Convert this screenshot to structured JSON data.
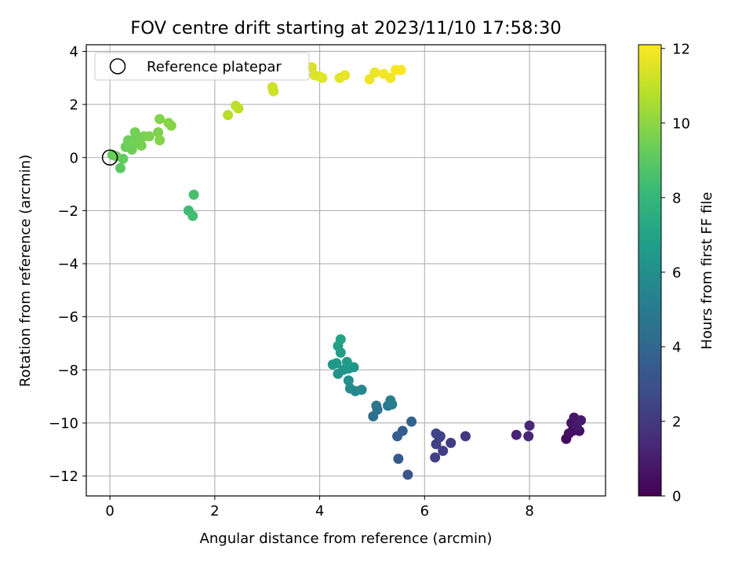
{
  "chart_data": {
    "type": "scatter",
    "title": "FOV centre drift starting at 2023/11/10 17:58:30",
    "xlabel": "Angular distance from reference (arcmin)",
    "ylabel": "Rotation from reference (arcmin)",
    "xlim": [
      -0.45,
      9.45
    ],
    "ylim": [
      -12.75,
      4.25
    ],
    "xticks": [
      0,
      2,
      4,
      6,
      8
    ],
    "yticks": [
      -12,
      -10,
      -8,
      -6,
      -4,
      -2,
      0,
      2,
      4
    ],
    "grid": true,
    "legend": {
      "position": "top-left",
      "entries": [
        "Reference platepar"
      ]
    },
    "reference_point": {
      "x": 0,
      "y": 0,
      "label": "Reference platepar"
    },
    "colorbar": {
      "label": "Hours from first FF file",
      "colormap": "viridis",
      "range": [
        0,
        12.1
      ],
      "ticks": [
        0,
        2,
        4,
        6,
        8,
        10,
        12
      ]
    },
    "series": [
      {
        "points": [
          {
            "x": 8.7,
            "y": -10.6,
            "c": 0.2
          },
          {
            "x": 8.82,
            "y": -10.3,
            "c": 0.4
          },
          {
            "x": 8.95,
            "y": -10.3,
            "c": 0.5
          },
          {
            "x": 8.8,
            "y": -10.0,
            "c": 0.6
          },
          {
            "x": 8.85,
            "y": -9.8,
            "c": 0.7
          },
          {
            "x": 8.9,
            "y": -10.1,
            "c": 0.8
          },
          {
            "x": 8.98,
            "y": -9.9,
            "c": 0.9
          },
          {
            "x": 8.75,
            "y": -10.4,
            "c": 0.5
          },
          {
            "x": 7.75,
            "y": -10.45,
            "c": 1.2
          },
          {
            "x": 7.98,
            "y": -10.5,
            "c": 1.3
          },
          {
            "x": 8.0,
            "y": -10.1,
            "c": 1.4
          },
          {
            "x": 6.78,
            "y": -10.5,
            "c": 1.9
          },
          {
            "x": 6.5,
            "y": -10.75,
            "c": 2.1
          },
          {
            "x": 6.35,
            "y": -11.05,
            "c": 2.2
          },
          {
            "x": 6.2,
            "y": -11.3,
            "c": 2.3
          },
          {
            "x": 6.22,
            "y": -10.8,
            "c": 2.3
          },
          {
            "x": 6.3,
            "y": -10.5,
            "c": 2.4
          },
          {
            "x": 6.22,
            "y": -10.4,
            "c": 2.5
          },
          {
            "x": 6.28,
            "y": -10.55,
            "c": 2.4
          },
          {
            "x": 5.68,
            "y": -11.95,
            "c": 3.2
          },
          {
            "x": 5.5,
            "y": -11.35,
            "c": 3.4
          },
          {
            "x": 5.48,
            "y": -10.5,
            "c": 3.6
          },
          {
            "x": 5.58,
            "y": -10.3,
            "c": 3.6
          },
          {
            "x": 5.75,
            "y": -9.95,
            "c": 3.8
          },
          {
            "x": 5.02,
            "y": -9.75,
            "c": 4.4
          },
          {
            "x": 5.1,
            "y": -9.5,
            "c": 4.6
          },
          {
            "x": 5.08,
            "y": -9.35,
            "c": 4.7
          },
          {
            "x": 5.3,
            "y": -9.35,
            "c": 4.9
          },
          {
            "x": 5.38,
            "y": -9.3,
            "c": 5.0
          },
          {
            "x": 5.35,
            "y": -9.15,
            "c": 5.1
          },
          {
            "x": 4.8,
            "y": -8.75,
            "c": 5.6
          },
          {
            "x": 4.58,
            "y": -8.7,
            "c": 5.8
          },
          {
            "x": 4.68,
            "y": -8.8,
            "c": 5.7
          },
          {
            "x": 4.55,
            "y": -8.4,
            "c": 6.0
          },
          {
            "x": 4.45,
            "y": -8.0,
            "c": 6.2
          },
          {
            "x": 4.35,
            "y": -8.15,
            "c": 6.3
          },
          {
            "x": 4.25,
            "y": -7.8,
            "c": 6.4
          },
          {
            "x": 4.32,
            "y": -7.75,
            "c": 6.5
          },
          {
            "x": 4.55,
            "y": -7.95,
            "c": 6.4
          },
          {
            "x": 4.65,
            "y": -7.9,
            "c": 6.3
          },
          {
            "x": 4.52,
            "y": -7.7,
            "c": 6.6
          },
          {
            "x": 4.4,
            "y": -7.35,
            "c": 6.8
          },
          {
            "x": 4.35,
            "y": -7.1,
            "c": 6.9
          },
          {
            "x": 4.4,
            "y": -6.85,
            "c": 7.0
          },
          {
            "x": 1.5,
            "y": -2.0,
            "c": 8.3
          },
          {
            "x": 1.58,
            "y": -2.2,
            "c": 8.4
          },
          {
            "x": 1.6,
            "y": -1.4,
            "c": 8.5
          },
          {
            "x": 0.2,
            "y": -0.4,
            "c": 9.0
          },
          {
            "x": 0.25,
            "y": -0.05,
            "c": 9.1
          },
          {
            "x": 0.05,
            "y": 0.1,
            "c": 9.2
          },
          {
            "x": 0.12,
            "y": 0.05,
            "c": 9.3
          },
          {
            "x": 0.3,
            "y": 0.4,
            "c": 9.3
          },
          {
            "x": 0.35,
            "y": 0.65,
            "c": 9.4
          },
          {
            "x": 0.4,
            "y": 0.35,
            "c": 9.4
          },
          {
            "x": 0.45,
            "y": 0.55,
            "c": 9.5
          },
          {
            "x": 0.48,
            "y": 0.95,
            "c": 9.5
          },
          {
            "x": 0.55,
            "y": 0.7,
            "c": 9.6
          },
          {
            "x": 0.6,
            "y": 0.45,
            "c": 9.6
          },
          {
            "x": 0.65,
            "y": 0.8,
            "c": 9.6
          },
          {
            "x": 0.75,
            "y": 0.8,
            "c": 9.7
          },
          {
            "x": 0.92,
            "y": 0.95,
            "c": 9.7
          },
          {
            "x": 0.95,
            "y": 0.65,
            "c": 9.8
          },
          {
            "x": 0.95,
            "y": 1.45,
            "c": 9.8
          },
          {
            "x": 1.12,
            "y": 1.3,
            "c": 9.9
          },
          {
            "x": 1.17,
            "y": 1.2,
            "c": 9.9
          },
          {
            "x": 0.5,
            "y": 0.8,
            "c": 9.5
          },
          {
            "x": 0.42,
            "y": 0.3,
            "c": 9.4
          },
          {
            "x": 2.25,
            "y": 1.6,
            "c": 10.8
          },
          {
            "x": 2.4,
            "y": 1.95,
            "c": 10.9
          },
          {
            "x": 2.45,
            "y": 1.85,
            "c": 10.9
          },
          {
            "x": 3.1,
            "y": 2.65,
            "c": 11.2
          },
          {
            "x": 3.12,
            "y": 2.5,
            "c": 11.2
          },
          {
            "x": 3.85,
            "y": 3.4,
            "c": 11.4
          },
          {
            "x": 3.9,
            "y": 3.1,
            "c": 11.5
          },
          {
            "x": 4.0,
            "y": 3.05,
            "c": 11.5
          },
          {
            "x": 4.05,
            "y": 3.0,
            "c": 11.6
          },
          {
            "x": 4.38,
            "y": 3.0,
            "c": 11.6
          },
          {
            "x": 4.48,
            "y": 3.1,
            "c": 11.7
          },
          {
            "x": 4.95,
            "y": 2.95,
            "c": 11.8
          },
          {
            "x": 5.05,
            "y": 3.2,
            "c": 11.8
          },
          {
            "x": 5.22,
            "y": 3.15,
            "c": 11.9
          },
          {
            "x": 5.35,
            "y": 3.0,
            "c": 11.9
          },
          {
            "x": 5.45,
            "y": 3.3,
            "c": 12.0
          },
          {
            "x": 5.55,
            "y": 3.3,
            "c": 12.0
          }
        ]
      }
    ]
  }
}
